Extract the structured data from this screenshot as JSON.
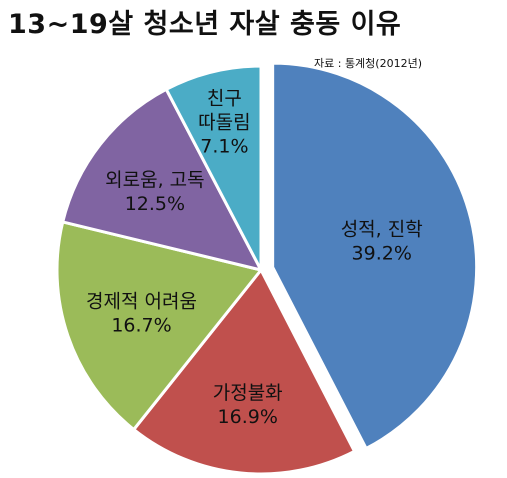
{
  "title": "13~19살 청소년 자살 충동 이유",
  "source": "자료 : 통계청(2012년)",
  "chart_data": {
    "type": "pie",
    "title": "13~19살 청소년 자살 충동 이유",
    "start": "12 o'clock",
    "direction": "clockwise",
    "exploded": "성적, 진학",
    "slices": [
      {
        "label": "성적, 진학",
        "label_lines": [
          "성적, 진학"
        ],
        "value": 39.2,
        "value_text": "39.2%",
        "color": "#4F81BD"
      },
      {
        "label": "가정불화",
        "label_lines": [
          "가정불화"
        ],
        "value": 16.9,
        "value_text": "16.9%",
        "color": "#C0504D"
      },
      {
        "label": "경제적 어려움",
        "label_lines": [
          "경제적 어려움"
        ],
        "value": 16.7,
        "value_text": "16.7%",
        "color": "#9BBB59"
      },
      {
        "label": "외로움, 고독",
        "label_lines": [
          "외로움, 고독"
        ],
        "value": 12.5,
        "value_text": "12.5%",
        "color": "#8064A2"
      },
      {
        "label": "친구 따돌림",
        "label_lines": [
          "친구",
          "따돌림"
        ],
        "value": 7.1,
        "value_text": "7.1%",
        "color": "#4BACC6"
      }
    ]
  }
}
